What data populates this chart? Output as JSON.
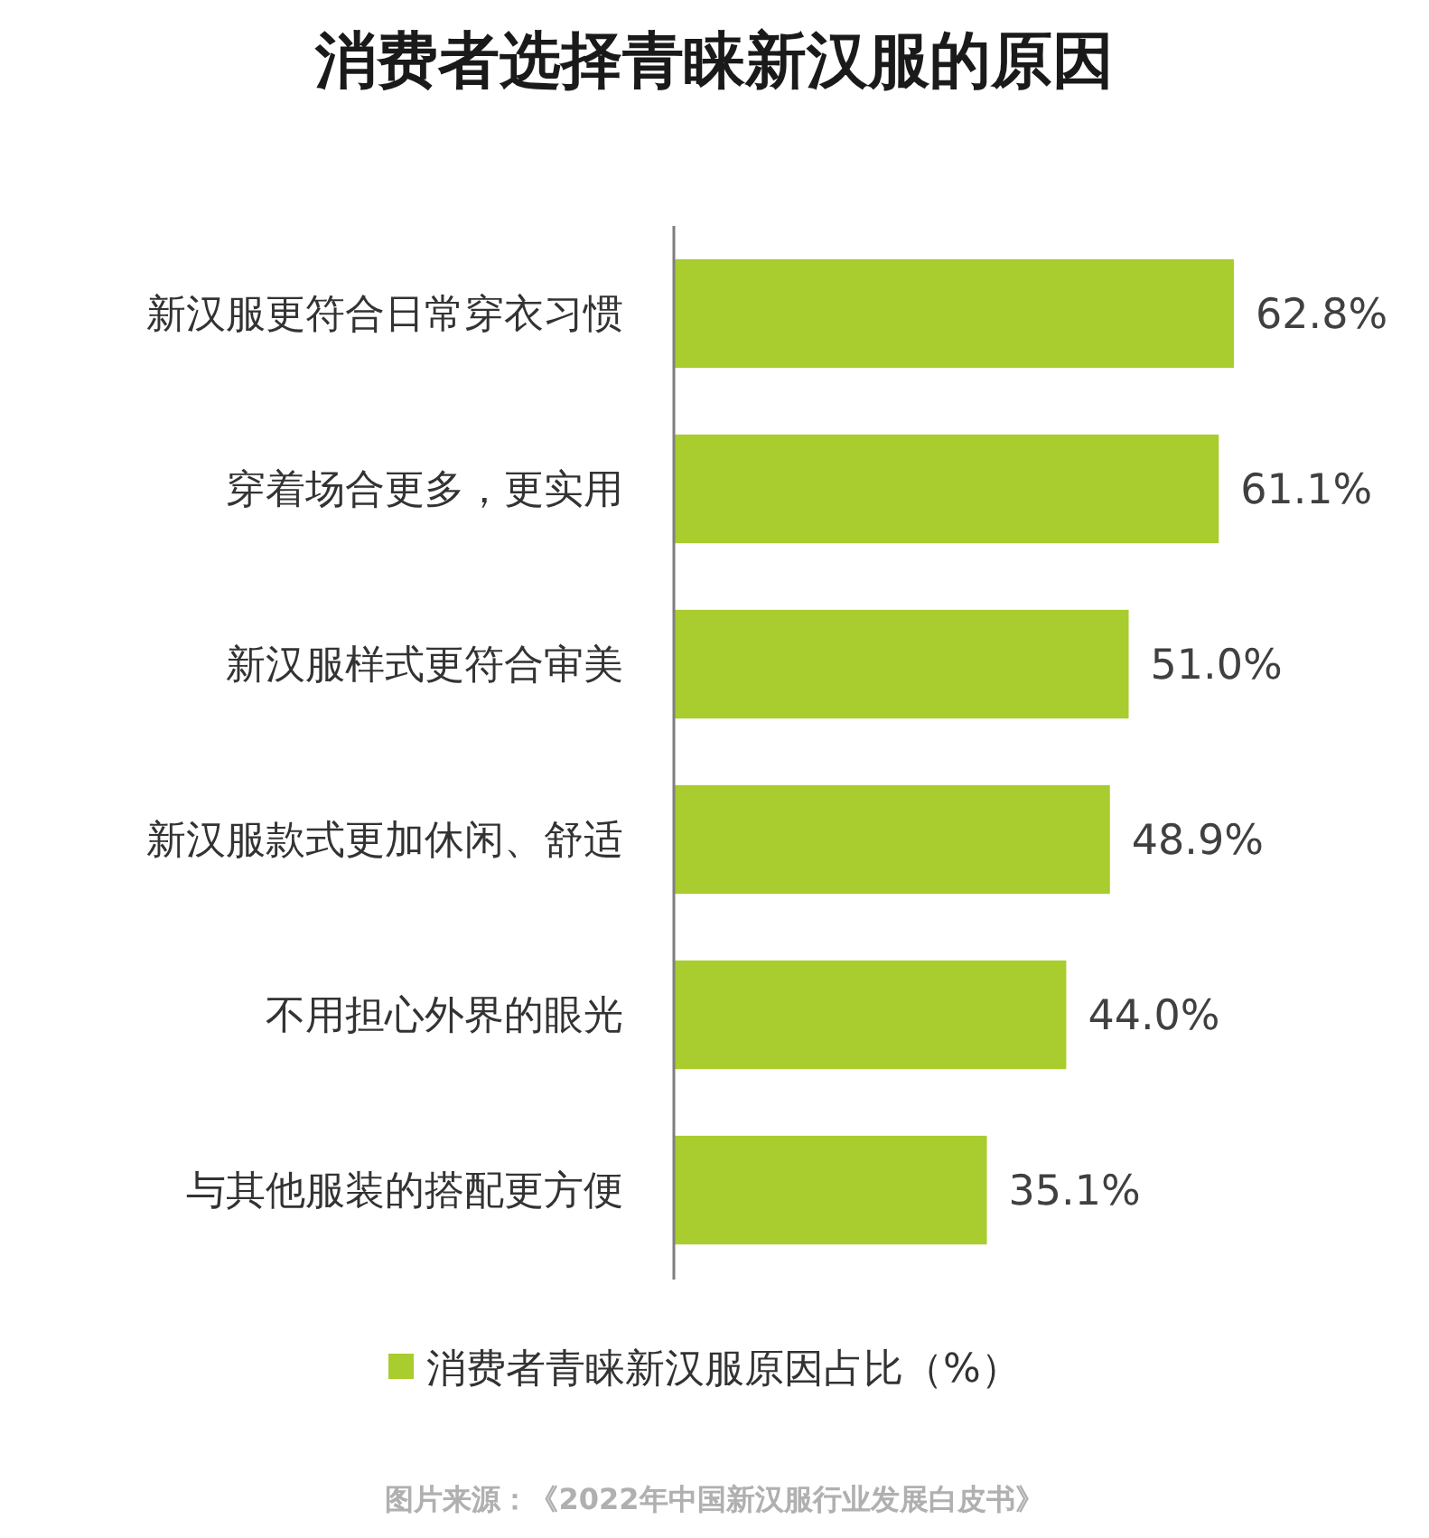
{
  "chart_data": {
    "type": "bar",
    "orientation": "horizontal",
    "title": "消费者选择青睐新汉服的原因",
    "categories": [
      "新汉服更符合日常穿衣习惯",
      "穿着场合更多，更实用",
      "新汉服样式更符合审美",
      "新汉服款式更加休闲、舒适",
      "不用担心外界的眼光",
      "与其他服装的搭配更方便"
    ],
    "series": [
      {
        "name": "消费者青睐新汉服原因占比（%）",
        "color": "#a9cc2e",
        "values": [
          62.8,
          61.1,
          51.0,
          48.9,
          44.0,
          35.1
        ],
        "value_labels": [
          "62.8%",
          "61.1%",
          "51.0%",
          "48.9%",
          "44.0%",
          "35.1%"
        ]
      }
    ],
    "legend": "bottom",
    "annotations": [
      "图片来源：《2022年中国新汉服行业发展白皮书》"
    ]
  }
}
